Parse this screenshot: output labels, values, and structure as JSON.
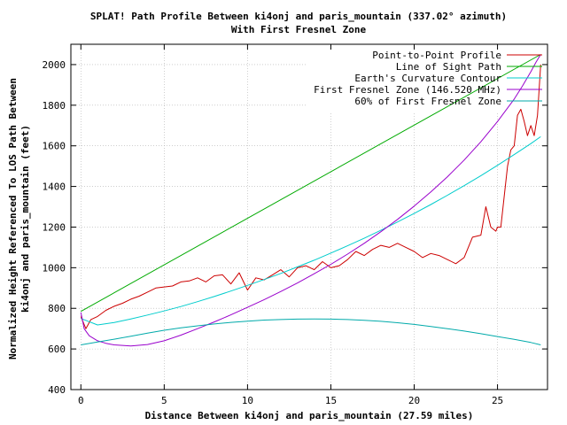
{
  "chart_data": {
    "type": "line",
    "title_line1": "SPLAT! Path Profile Between ki4onj and paris_mountain (337.02° azimuth)",
    "title_line2": "With First Fresnel Zone",
    "xlabel": "Distance Between ki4onj and paris_mountain (27.59 miles)",
    "ylabel_line1": "Normalized Height Referenced To LOS Path Between",
    "ylabel_line2": "ki4onj and paris_mountain (feet)",
    "xlim": [
      -0.6,
      28.0
    ],
    "ylim": [
      400,
      2100
    ],
    "x_ticks": [
      0,
      5,
      10,
      15,
      20,
      25
    ],
    "y_ticks": [
      400,
      600,
      800,
      1000,
      1200,
      1400,
      1600,
      1800,
      2000
    ],
    "grid": true,
    "legend_position": "top-right",
    "series": [
      {
        "name": "Point-to-Point Profile",
        "color": "#cc0000",
        "x": [
          0,
          0.3,
          0.6,
          1.0,
          1.5,
          2.0,
          2.5,
          3.0,
          3.5,
          4.0,
          4.5,
          5.0,
          5.5,
          6.0,
          6.5,
          7.0,
          7.5,
          8.0,
          8.5,
          9.0,
          9.5,
          10.0,
          10.5,
          11.0,
          11.5,
          12.0,
          12.5,
          13.0,
          13.5,
          14.0,
          14.5,
          15.0,
          15.5,
          16.0,
          16.5,
          17.0,
          17.5,
          18.0,
          18.5,
          19.0,
          19.5,
          20.0,
          20.5,
          21.0,
          21.5,
          22.0,
          22.5,
          23.0,
          23.5,
          24.0,
          24.3,
          24.6,
          24.9,
          25.0,
          25.2,
          25.4,
          25.6,
          25.8,
          26.0,
          26.2,
          26.4,
          26.6,
          26.8,
          27.0,
          27.2,
          27.4,
          27.59
        ],
        "y": [
          760,
          700,
          745,
          760,
          790,
          810,
          825,
          845,
          860,
          880,
          900,
          905,
          910,
          930,
          935,
          950,
          930,
          960,
          965,
          920,
          975,
          890,
          950,
          940,
          965,
          990,
          955,
          1000,
          1010,
          990,
          1030,
          1000,
          1010,
          1040,
          1080,
          1060,
          1090,
          1110,
          1100,
          1120,
          1100,
          1080,
          1050,
          1070,
          1060,
          1040,
          1020,
          1050,
          1150,
          1160,
          1300,
          1200,
          1180,
          1200,
          1200,
          1350,
          1500,
          1580,
          1600,
          1750,
          1780,
          1720,
          1650,
          1700,
          1650,
          1750,
          2000
        ]
      },
      {
        "name": "Line of Sight Path",
        "color": "#00aa00",
        "x": [
          0,
          27.59
        ],
        "y": [
          785,
          2050
        ]
      },
      {
        "name": "Earth's Curvature Contour",
        "color": "#00cccc",
        "x": [
          0,
          1,
          2,
          3,
          4,
          5,
          6,
          7,
          8,
          9,
          10,
          11,
          12,
          13,
          14,
          15,
          16,
          17,
          18,
          19,
          20,
          21,
          22,
          23,
          24,
          25,
          26,
          27,
          27.59
        ],
        "y": [
          750,
          718,
          730,
          748,
          767,
          787,
          809,
          833,
          858,
          885,
          913,
          942,
          972,
          1004,
          1037,
          1072,
          1108,
          1145,
          1184,
          1225,
          1267,
          1311,
          1357,
          1404,
          1453,
          1504,
          1557,
          1611,
          1645
        ]
      },
      {
        "name": "First Fresnel Zone (146.520 MHz)",
        "color": "#9900cc",
        "x": [
          0,
          0.2,
          0.5,
          1.0,
          1.5,
          2.0,
          3.0,
          4.0,
          5.0,
          6.0,
          7.0,
          8.0,
          9.0,
          10.0,
          11.0,
          12.0,
          13.0,
          14.0,
          15.0,
          16.0,
          17.0,
          18.0,
          19.0,
          20.0,
          21.0,
          22.0,
          23.0,
          24.0,
          25.0,
          26.0,
          26.5,
          27.0,
          27.3,
          27.59
        ],
        "y": [
          780,
          700,
          665,
          640,
          628,
          620,
          615,
          622,
          640,
          668,
          700,
          733,
          768,
          805,
          843,
          883,
          925,
          970,
          1017,
          1067,
          1120,
          1177,
          1238,
          1303,
          1373,
          1448,
          1530,
          1620,
          1720,
          1830,
          1895,
          1965,
          2010,
          2050
        ]
      },
      {
        "name": "60% of First Fresnel Zone",
        "color": "#00aaaa",
        "x": [
          0,
          1,
          2,
          3,
          4,
          5,
          6,
          7,
          8,
          9,
          10,
          11,
          12,
          13,
          14,
          15,
          16,
          17,
          18,
          19,
          20,
          21,
          22,
          23,
          24,
          25,
          26,
          27,
          27.59
        ],
        "y": [
          620,
          634,
          648,
          663,
          678,
          692,
          704,
          714,
          723,
          731,
          737,
          742,
          745,
          747,
          748,
          747,
          745,
          741,
          736,
          729,
          721,
          711,
          700,
          688,
          675,
          661,
          647,
          632,
          620
        ]
      }
    ]
  }
}
